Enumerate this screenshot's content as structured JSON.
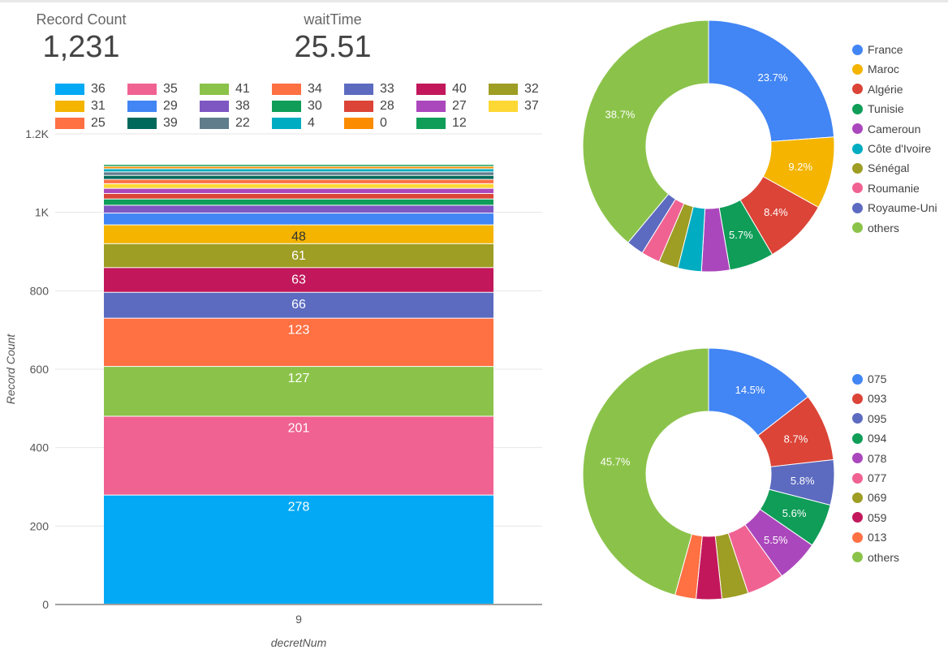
{
  "scorecards": [
    {
      "label": "Record Count",
      "value": "1,231"
    },
    {
      "label": "waitTime",
      "value": "25.51"
    }
  ],
  "colors": {
    "grid": "#e6e6e6",
    "axis": "#444444",
    "label": "#555555"
  },
  "chart_data": [
    {
      "type": "bar",
      "stacked": true,
      "categories": [
        "9"
      ],
      "xlabel": "decretNum",
      "ylabel": "Record Count",
      "ylim": [
        0,
        1200
      ],
      "yticks": [
        "0",
        "200",
        "400",
        "600",
        "800",
        "1K",
        "1.2K"
      ],
      "ytick_values": [
        0,
        200,
        400,
        600,
        800,
        1000,
        1200
      ],
      "legend_position": "top",
      "series": [
        {
          "name": "36",
          "color": "#03a9f4",
          "values": [
            278
          ],
          "label": "278"
        },
        {
          "name": "35",
          "color": "#f06292",
          "values": [
            201
          ],
          "label": "201"
        },
        {
          "name": "41",
          "color": "#8bc34a",
          "values": [
            127
          ],
          "label": "127"
        },
        {
          "name": "34",
          "color": "#ff7043",
          "values": [
            123
          ],
          "label": "123"
        },
        {
          "name": "33",
          "color": "#5c6bc0",
          "values": [
            66
          ],
          "label": "66"
        },
        {
          "name": "40",
          "color": "#c2185b",
          "values": [
            63
          ],
          "label": "63"
        },
        {
          "name": "32",
          "color": "#9e9d24",
          "values": [
            61
          ],
          "label": "61"
        },
        {
          "name": "31",
          "color": "#f4b400",
          "values": [
            48
          ],
          "label": "48"
        },
        {
          "name": "29",
          "color": "#4285f4",
          "values": [
            30
          ]
        },
        {
          "name": "38",
          "color": "#7e57c2",
          "values": [
            20
          ]
        },
        {
          "name": "30",
          "color": "#0f9d58",
          "values": [
            16
          ]
        },
        {
          "name": "28",
          "color": "#db4437",
          "values": [
            14
          ]
        },
        {
          "name": "27",
          "color": "#ab47bc",
          "values": [
            13
          ]
        },
        {
          "name": "37",
          "color": "#fdd835",
          "values": [
            12
          ]
        },
        {
          "name": "25",
          "color": "#ff7043",
          "values": [
            11
          ]
        },
        {
          "name": "39",
          "color": "#00695c",
          "values": [
            10
          ]
        },
        {
          "name": "22",
          "color": "#607d8b",
          "values": [
            9
          ]
        },
        {
          "name": "4",
          "color": "#00acc1",
          "values": [
            8
          ]
        },
        {
          "name": "0",
          "color": "#fb8c00",
          "values": [
            6
          ]
        },
        {
          "name": "12",
          "color": "#0f9d58",
          "values": [
            5
          ]
        }
      ]
    },
    {
      "type": "pie",
      "donut": true,
      "legend_position": "right",
      "slices": [
        {
          "label": "France",
          "value": 23.7,
          "color": "#4285f4",
          "text": "23.7%"
        },
        {
          "label": "Maroc",
          "value": 9.2,
          "color": "#f4b400",
          "text": "9.2%"
        },
        {
          "label": "Algérie",
          "value": 8.4,
          "color": "#db4437",
          "text": "8.4%"
        },
        {
          "label": "Tunisie",
          "value": 5.7,
          "color": "#0f9d58",
          "text": "5.7%"
        },
        {
          "label": "Cameroun",
          "value": 3.6,
          "color": "#ab47bc"
        },
        {
          "label": "Côte d'Ivoire",
          "value": 3.0,
          "color": "#00acc1"
        },
        {
          "label": "Sénégal",
          "value": 2.5,
          "color": "#9e9d24"
        },
        {
          "label": "Roumanie",
          "value": 2.4,
          "color": "#f06292"
        },
        {
          "label": "Royaume-Uni",
          "value": 2.2,
          "color": "#5c6bc0"
        },
        {
          "label": "others",
          "value": 38.7,
          "color": "#8bc34a",
          "text": "38.7%"
        }
      ]
    },
    {
      "type": "pie",
      "donut": true,
      "legend_position": "right",
      "slices": [
        {
          "label": "075",
          "value": 14.5,
          "color": "#4285f4",
          "text": "14.5%"
        },
        {
          "label": "093",
          "value": 8.7,
          "color": "#db4437",
          "text": "8.7%"
        },
        {
          "label": "095",
          "value": 5.8,
          "color": "#5c6bc0",
          "text": "5.8%"
        },
        {
          "label": "094",
          "value": 5.6,
          "color": "#0f9d58",
          "text": "5.6%"
        },
        {
          "label": "078",
          "value": 5.5,
          "color": "#ab47bc",
          "text": "5.5%"
        },
        {
          "label": "077",
          "value": 4.8,
          "color": "#f06292"
        },
        {
          "label": "069",
          "value": 3.4,
          "color": "#9e9d24"
        },
        {
          "label": "059",
          "value": 3.3,
          "color": "#c2185b"
        },
        {
          "label": "013",
          "value": 2.7,
          "color": "#ff7043"
        },
        {
          "label": "others",
          "value": 45.7,
          "color": "#8bc34a",
          "text": "45.7%"
        }
      ]
    }
  ]
}
